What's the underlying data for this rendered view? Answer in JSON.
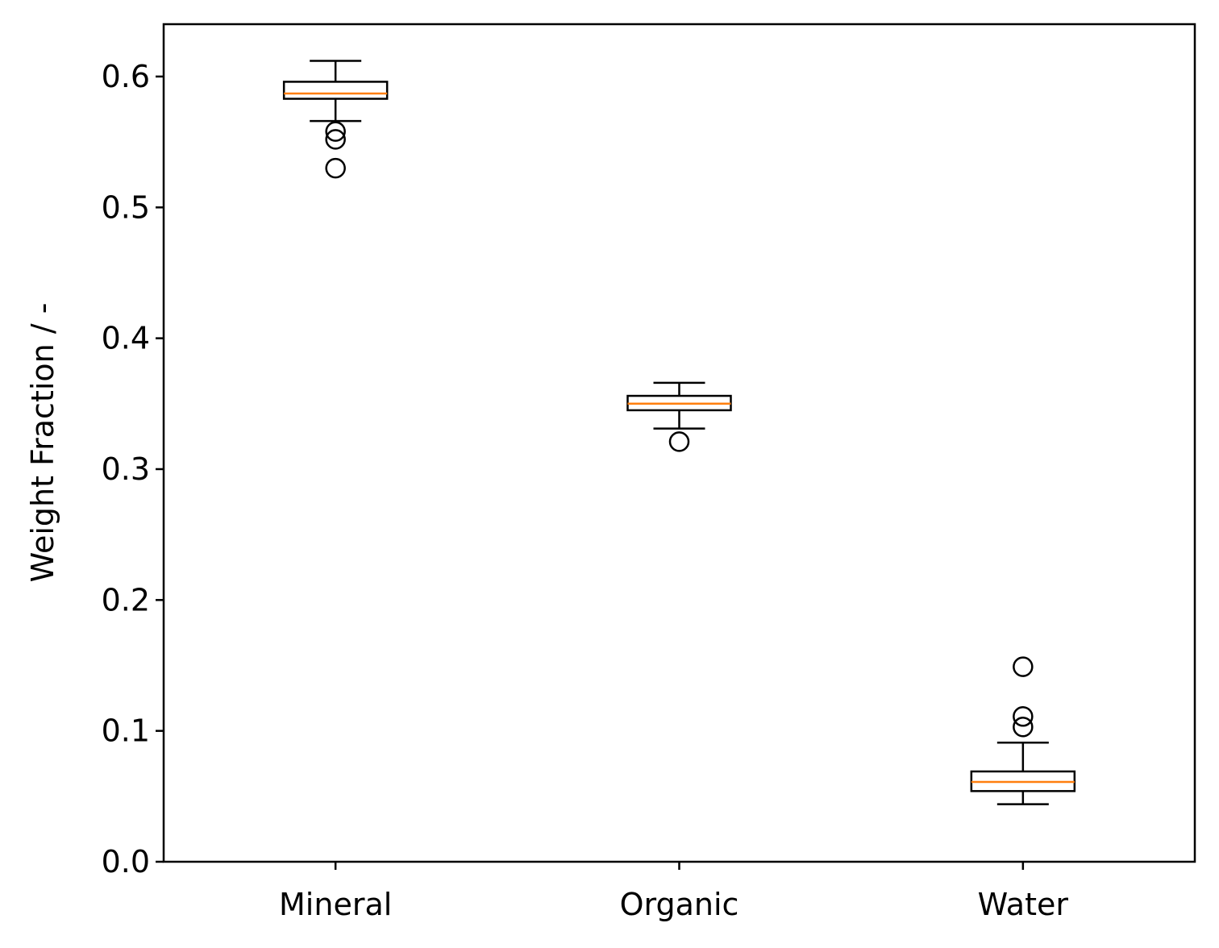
{
  "chart_data": {
    "type": "box",
    "title": "",
    "xlabel": "",
    "ylabel": "Weight Fraction / -",
    "ylim": [
      0.0,
      0.64
    ],
    "yticks": [
      0.0,
      0.1,
      0.2,
      0.3,
      0.4,
      0.5,
      0.6
    ],
    "ytick_labels": [
      "0.0",
      "0.1",
      "0.2",
      "0.3",
      "0.4",
      "0.5",
      "0.6"
    ],
    "grid": false,
    "categories": [
      "Mineral",
      "Organic",
      "Water"
    ],
    "boxes": [
      {
        "category": "Mineral",
        "whisker_low": 0.566,
        "q1": 0.583,
        "median": 0.587,
        "q3": 0.596,
        "whisker_high": 0.612,
        "outliers": [
          0.558,
          0.552,
          0.53
        ]
      },
      {
        "category": "Organic",
        "whisker_low": 0.331,
        "q1": 0.345,
        "median": 0.35,
        "q3": 0.356,
        "whisker_high": 0.366,
        "outliers": [
          0.321
        ]
      },
      {
        "category": "Water",
        "whisker_low": 0.044,
        "q1": 0.054,
        "median": 0.061,
        "q3": 0.069,
        "whisker_high": 0.091,
        "outliers": [
          0.149,
          0.111,
          0.103
        ]
      }
    ],
    "colors": {
      "box": "#000000",
      "median": "#ff7f0e",
      "outlier": "#000000",
      "axis": "#000000"
    }
  }
}
